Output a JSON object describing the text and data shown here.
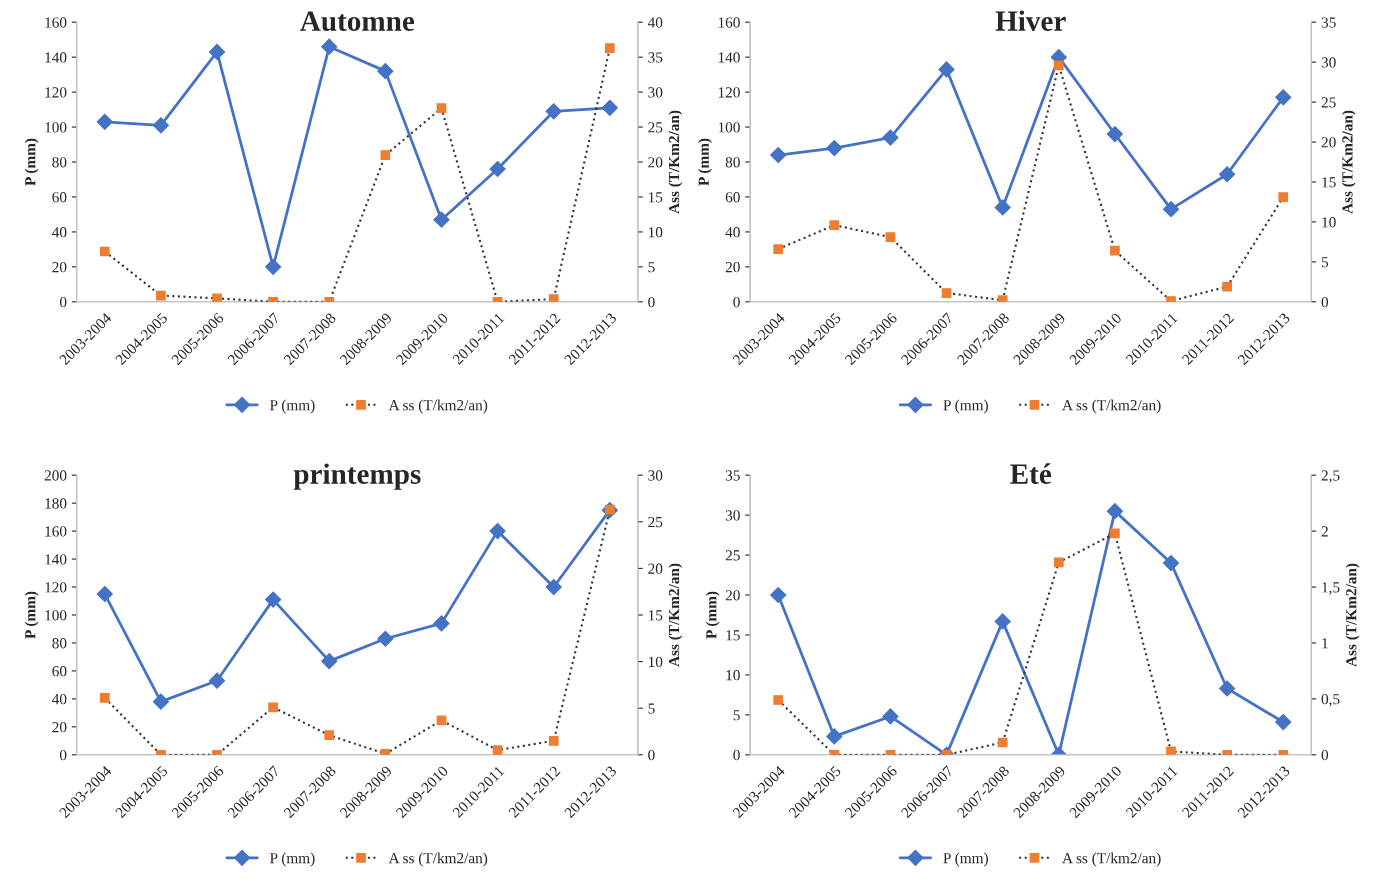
{
  "chart_data": [
    {
      "type": "line",
      "title": "Automne",
      "ylabel": "P (mm)",
      "y2label": "Ass (T/Km2/an)",
      "categories": [
        "2003-2004",
        "2004-2005",
        "2005-2006",
        "2006-2007",
        "2007-2008",
        "2008-2009",
        "2009-2010",
        "2010-2011",
        "2011-2012",
        "2012-2013"
      ],
      "ylim": [
        0,
        160
      ],
      "yticks": [
        0,
        20,
        40,
        60,
        80,
        100,
        120,
        140,
        160
      ],
      "y2lim": [
        0,
        40
      ],
      "y2ticks": [
        0,
        5,
        10,
        15,
        20,
        25,
        30,
        35,
        40
      ],
      "legend": "bottom",
      "grid": false,
      "series": [
        {
          "name": "P (mm)",
          "color": "#4472c4",
          "marker": "diamond",
          "line_style": "solid",
          "values": [
            103,
            101,
            143,
            20,
            146,
            132,
            47,
            76,
            109,
            111
          ]
        },
        {
          "name": "A ss (T/km2/an)",
          "color": "#ed7d31",
          "marker": "square",
          "line_style": "dotted",
          "axis": "y2",
          "values": [
            7.2,
            0.9,
            0.5,
            0,
            0,
            21,
            27.7,
            0,
            0.4,
            36.3
          ]
        }
      ]
    },
    {
      "type": "line",
      "title": "Hiver",
      "ylabel": "P (mm)",
      "y2label": "Ass (T/Km2/an)",
      "categories": [
        "2003-2004",
        "2004-2005",
        "2005-2006",
        "2006-2007",
        "2007-2008",
        "2008-2009",
        "2009-2010",
        "2010-2011",
        "2011-2012",
        "2012-2013"
      ],
      "ylim": [
        0,
        160
      ],
      "yticks": [
        0,
        20,
        40,
        60,
        80,
        100,
        120,
        140,
        160
      ],
      "y2lim": [
        0,
        35
      ],
      "y2ticks": [
        0,
        5,
        10,
        15,
        20,
        25,
        30,
        35
      ],
      "legend": "bottom",
      "grid": false,
      "series": [
        {
          "name": "P (mm)",
          "color": "#4472c4",
          "marker": "diamond",
          "line_style": "solid",
          "values": [
            84,
            88,
            94,
            133,
            54,
            140,
            96,
            53,
            73,
            117
          ]
        },
        {
          "name": "A ss (T/km2/an)",
          "color": "#ed7d31",
          "marker": "square",
          "line_style": "dotted",
          "axis": "y2",
          "values": [
            6.6,
            9.6,
            8.1,
            1.1,
            0.2,
            29.6,
            6.4,
            0.1,
            1.9,
            13.1
          ]
        }
      ]
    },
    {
      "type": "line",
      "title": "printemps",
      "ylabel": "P (mm)",
      "y2label": "Ass (T/Km2/an)",
      "categories": [
        "2003-2004",
        "2004-2005",
        "2005-2006",
        "2006-2007",
        "2007-2008",
        "2008-2009",
        "2009-2010",
        "2010-2011",
        "2011-2012",
        "2012-2013"
      ],
      "ylim": [
        0,
        200
      ],
      "yticks": [
        0,
        20,
        40,
        60,
        80,
        100,
        120,
        140,
        160,
        180,
        200
      ],
      "y2lim": [
        0,
        30
      ],
      "y2ticks": [
        0,
        5,
        10,
        15,
        20,
        25,
        30
      ],
      "legend": "bottom",
      "grid": false,
      "series": [
        {
          "name": "P (mm)",
          "color": "#4472c4",
          "marker": "diamond",
          "line_style": "solid",
          "values": [
            115,
            38,
            53,
            111,
            67,
            83,
            94,
            160,
            120,
            175
          ]
        },
        {
          "name": "A ss (T/km2/an)",
          "color": "#ed7d31",
          "marker": "square",
          "line_style": "dotted",
          "axis": "y2",
          "values": [
            6.1,
            0,
            0,
            5.1,
            2.1,
            0.1,
            3.7,
            0.5,
            1.5,
            26.3
          ]
        }
      ]
    },
    {
      "type": "line",
      "title": "Eté",
      "ylabel": "P (mm)",
      "y2label": "Ass (T/Km2/an)",
      "categories": [
        "2003-2004",
        "2004-2005",
        "2005-2006",
        "2006-2007",
        "2007-2008",
        "2008-2009",
        "2009-2010",
        "2010-2011",
        "2011-2012",
        "2012-2013"
      ],
      "ylim": [
        0,
        35
      ],
      "yticks": [
        0,
        5,
        10,
        15,
        20,
        25,
        30,
        35
      ],
      "y2lim": [
        0,
        2.5
      ],
      "y2ticks": [
        0,
        {
          "value": 0.5,
          "label": "0,5"
        },
        1,
        {
          "value": 1.5,
          "label": "1,5"
        },
        2,
        {
          "value": 2.5,
          "label": "2,5"
        }
      ],
      "legend": "bottom",
      "grid": false,
      "series": [
        {
          "name": "P (mm)",
          "color": "#4472c4",
          "marker": "diamond",
          "line_style": "solid",
          "values": [
            20,
            2.3,
            4.8,
            0,
            16.7,
            0,
            30.5,
            24,
            8.3,
            4.1
          ]
        },
        {
          "name": "A ss (T/km2/an)",
          "color": "#ed7d31",
          "marker": "square",
          "line_style": "dotted",
          "axis": "y2",
          "values": [
            0.49,
            0,
            0,
            0,
            0.11,
            1.72,
            1.98,
            0.03,
            0,
            0
          ]
        }
      ]
    }
  ]
}
